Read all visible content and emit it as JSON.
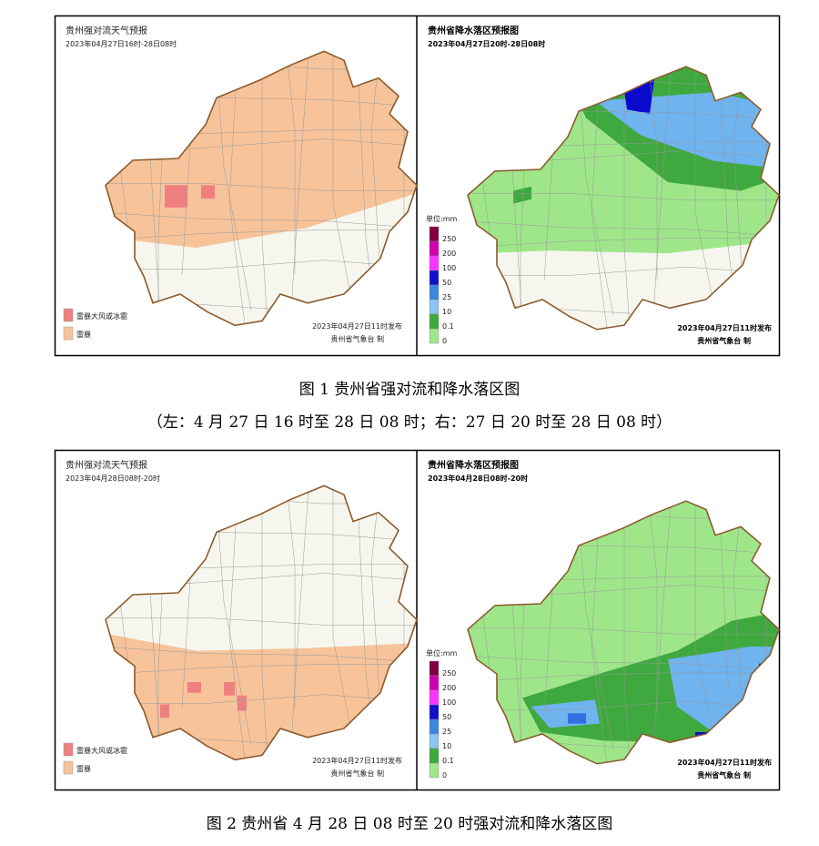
{
  "figures": [
    {
      "caption": "图 1 贵州省强对流和降水落区图",
      "subcaption": "（左：4 月 27 日 16 时至 28 日 08 时；右：27 日 20 时至 28 日 08 时）",
      "left": {
        "title": "贵州强对流天气预报",
        "time": "2023年04月27日16时-28日08时",
        "legend": [
          "雷暴大风或冰雹",
          "雷暴"
        ],
        "issued": "2023年04月27日11时发布",
        "agency": "贵州省气象台 制"
      },
      "right": {
        "title": "贵州省降水落区预报图",
        "time": "2023年04月27日20时-28日08时",
        "unit": "单位:mm",
        "scale": [
          "250",
          "200",
          "100",
          "50",
          "25",
          "10",
          "0.1",
          "0"
        ],
        "issued": "2023年04月27日11时发布",
        "agency": "贵州省气象台 制"
      }
    },
    {
      "caption": "图 2 贵州省 4 月 28 日 08 时至 20 时强对流和降水落区图",
      "left": {
        "title": "贵州强对流天气预报",
        "time": "2023年04月28日08时-20时",
        "legend": [
          "雷暴大风或冰雹",
          "雷暴"
        ],
        "issued": "2023年04月27日11时发布",
        "agency": "贵州省气象台 制"
      },
      "right": {
        "title": "贵州省降水落区预报图",
        "time": "2023年04月28日08时-20时",
        "unit": "单位:mm",
        "scale": [
          "250",
          "200",
          "100",
          "50",
          "25",
          "10",
          "0.1",
          "0"
        ],
        "issued": "2023年04月27日11时发布",
        "agency": "贵州省气象台 制"
      }
    }
  ]
}
